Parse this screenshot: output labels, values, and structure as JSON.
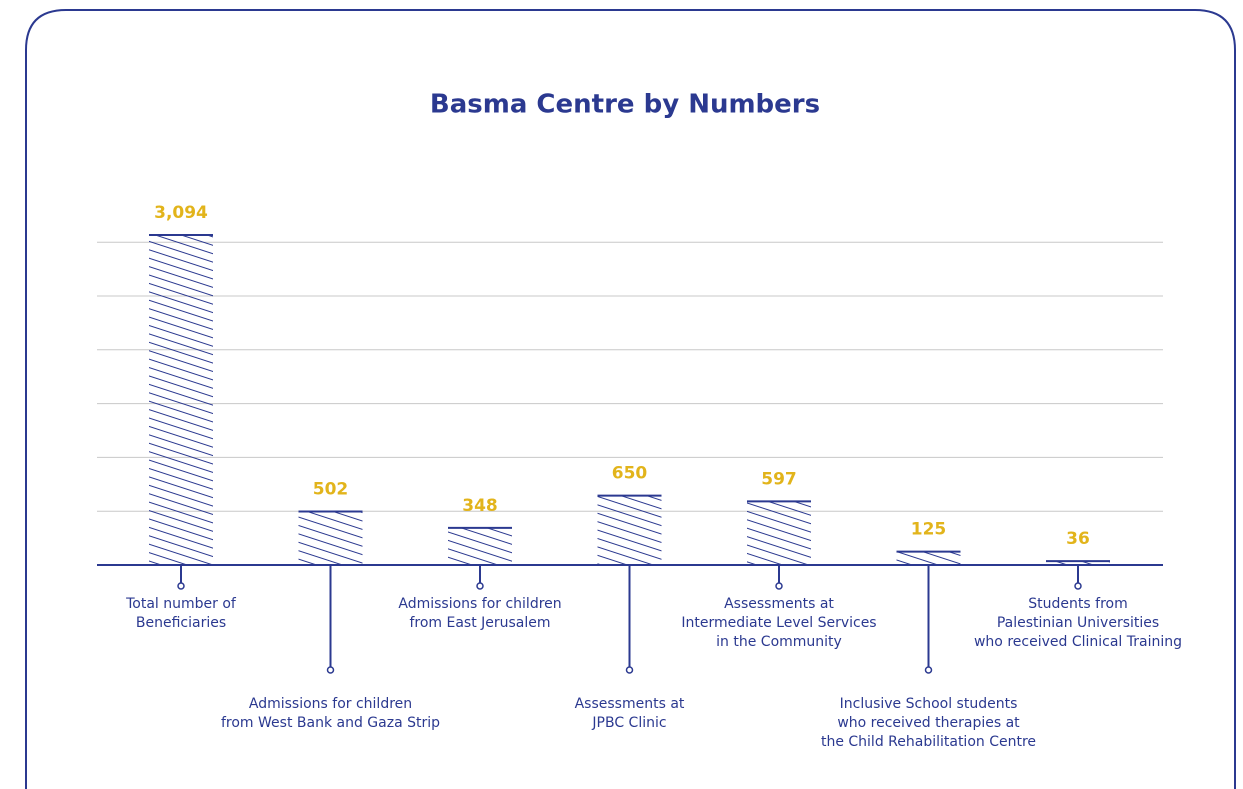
{
  "chart_data": {
    "type": "bar",
    "title": "Basma Centre by Numbers",
    "categories": [
      [
        "Total number of",
        "Beneficiaries"
      ],
      [
        "Admissions for children",
        "from West Bank and Gaza Strip"
      ],
      [
        "Admissions for children",
        "from East Jerusalem"
      ],
      [
        "Assessments at",
        "JPBC Clinic"
      ],
      [
        "Assessments at",
        "Intermediate Level Services",
        "in the Community"
      ],
      [
        "Inclusive School students",
        "who received therapies at",
        "the Child Rehabilitation Centre"
      ],
      [
        "Students from",
        "Palestinian Universities",
        "who received Clinical Training"
      ]
    ],
    "values": [
      3094,
      502,
      348,
      650,
      597,
      125,
      36
    ],
    "value_labels": [
      "3,094",
      "502",
      "348",
      "650",
      "597",
      "125",
      "36"
    ],
    "color": "#2b3990",
    "label_color": "#e2b41b",
    "grid": true
  }
}
